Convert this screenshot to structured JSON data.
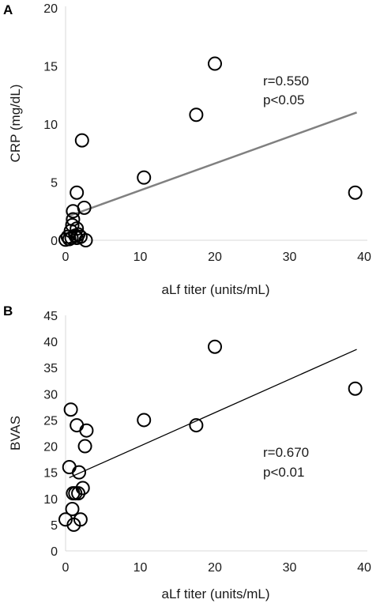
{
  "chart_data": [
    {
      "type": "scatter",
      "panel_label": "A",
      "xlabel": "aLf titer (units/mL)",
      "ylabel": "CRP (mg/dL)",
      "xlim": [
        0,
        40
      ],
      "ylim": [
        0,
        20
      ],
      "xticks": [
        0,
        10,
        20,
        30,
        40
      ],
      "yticks": [
        0,
        5,
        10,
        15,
        20
      ],
      "annotations": [
        "r=0.550",
        "p<0.05"
      ],
      "trendline": {
        "x": [
          0.5,
          39
        ],
        "y": [
          2.1,
          11.0
        ],
        "color": "#808080"
      },
      "points": [
        {
          "x": 0.0,
          "y": 0.05
        },
        {
          "x": 0.3,
          "y": 0.3
        },
        {
          "x": 0.5,
          "y": 0.1
        },
        {
          "x": 0.7,
          "y": 0.8
        },
        {
          "x": 0.8,
          "y": 0.2
        },
        {
          "x": 0.9,
          "y": 1.3
        },
        {
          "x": 1.0,
          "y": 1.8
        },
        {
          "x": 1.0,
          "y": 2.5
        },
        {
          "x": 1.3,
          "y": 0.4
        },
        {
          "x": 1.5,
          "y": 0.2
        },
        {
          "x": 1.5,
          "y": 1.0
        },
        {
          "x": 1.7,
          "y": 0.5
        },
        {
          "x": 2.0,
          "y": 0.3
        },
        {
          "x": 2.7,
          "y": 0.0
        },
        {
          "x": 1.5,
          "y": 4.1
        },
        {
          "x": 2.5,
          "y": 2.8
        },
        {
          "x": 2.2,
          "y": 8.6
        },
        {
          "x": 10.5,
          "y": 5.4
        },
        {
          "x": 17.5,
          "y": 10.8
        },
        {
          "x": 20.0,
          "y": 15.2
        },
        {
          "x": 38.8,
          "y": 4.1
        }
      ]
    },
    {
      "type": "scatter",
      "panel_label": "B",
      "xlabel": "aLf titer (units/mL)",
      "ylabel": "BVAS",
      "xlim": [
        0,
        40
      ],
      "ylim": [
        0,
        45
      ],
      "xticks": [
        0,
        10,
        20,
        30,
        40
      ],
      "yticks": [
        0,
        5,
        10,
        15,
        20,
        25,
        30,
        35,
        40,
        45
      ],
      "annotations": [
        "r=0.670",
        "p<0.01"
      ],
      "trendline": {
        "x": [
          0.5,
          39
        ],
        "y": [
          14.0,
          38.5
        ],
        "color": "#000000"
      },
      "points": [
        {
          "x": 0.0,
          "y": 6
        },
        {
          "x": 0.5,
          "y": 16
        },
        {
          "x": 0.7,
          "y": 27
        },
        {
          "x": 0.9,
          "y": 8
        },
        {
          "x": 1.0,
          "y": 11
        },
        {
          "x": 1.1,
          "y": 5
        },
        {
          "x": 1.3,
          "y": 11
        },
        {
          "x": 1.5,
          "y": 24
        },
        {
          "x": 1.7,
          "y": 11
        },
        {
          "x": 1.8,
          "y": 15
        },
        {
          "x": 2.0,
          "y": 6
        },
        {
          "x": 2.3,
          "y": 12
        },
        {
          "x": 2.6,
          "y": 20
        },
        {
          "x": 2.8,
          "y": 23
        },
        {
          "x": 10.5,
          "y": 25
        },
        {
          "x": 17.5,
          "y": 24
        },
        {
          "x": 20.0,
          "y": 39
        },
        {
          "x": 38.8,
          "y": 31
        }
      ]
    }
  ]
}
